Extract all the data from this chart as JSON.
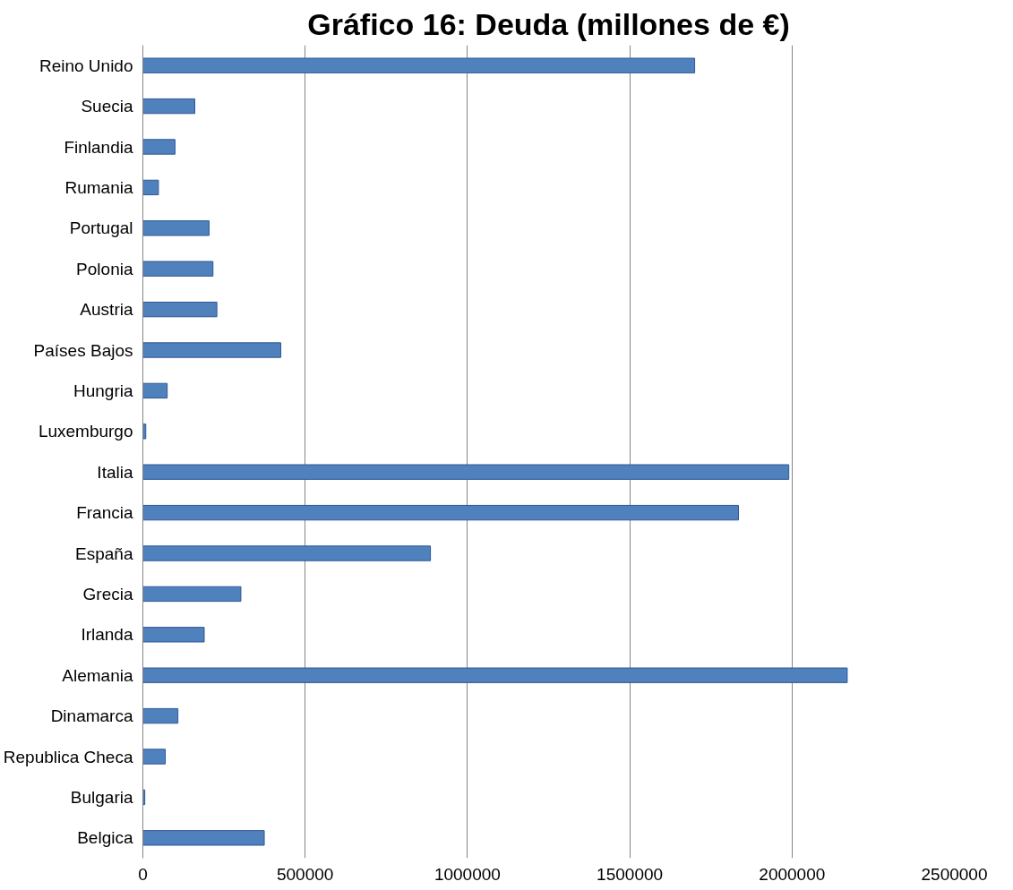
{
  "chart_data": {
    "type": "bar",
    "orientation": "horizontal",
    "title": "Gráfico 16: Deuda (millones de €)",
    "categories": [
      "Reino Unido",
      "Suecia",
      "Finlandia",
      "Rumania",
      "Portugal",
      "Polonia",
      "Austria",
      "Países Bajos",
      "Hungria",
      "Luxemburgo",
      "Italia",
      "Francia",
      "España",
      "Grecia",
      "Irlanda",
      "Alemania",
      "Dinamarca",
      "Republica Checa",
      "Bulgaria",
      "Belgica"
    ],
    "values": [
      1700000,
      160000,
      99000,
      48000,
      204000,
      216000,
      228000,
      425000,
      75000,
      9000,
      1990000,
      1835000,
      886000,
      302000,
      189000,
      2170000,
      108000,
      69000,
      6000,
      374000
    ],
    "color": "#4f81bd",
    "xlim": [
      0,
      2500000
    ],
    "xticks": [
      0,
      500000,
      1000000,
      1500000,
      2000000,
      2500000
    ],
    "grid": "x"
  }
}
